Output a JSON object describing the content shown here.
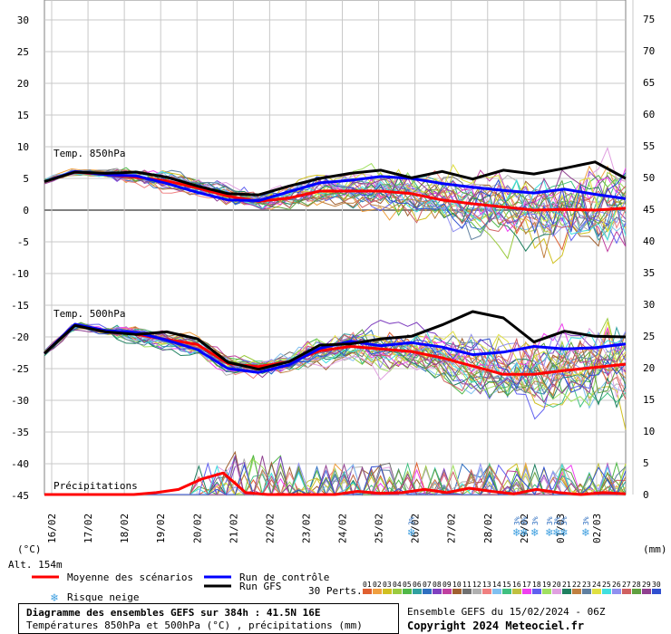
{
  "chart_data": {
    "type": "line",
    "title": "Diagramme des ensembles GEFS sur 384h : 41.5N 16E",
    "subtitle": "Températures 850hPa et 500hPa (°C) , précipitations (mm)",
    "left_axis": {
      "unit_label": "(°C)",
      "ticks": [
        30,
        25,
        20,
        15,
        10,
        5,
        0,
        -5,
        -10,
        -15,
        -20,
        -25,
        -30,
        -35,
        -40,
        -45
      ],
      "range": [
        -45,
        30
      ]
    },
    "right_axis": {
      "unit_label": "(mm)",
      "ticks": [
        75,
        70,
        65,
        60,
        55,
        50,
        45,
        40,
        35,
        30,
        25,
        20,
        15,
        10,
        5,
        0
      ],
      "range": [
        0,
        75
      ]
    },
    "x_ticks": [
      "16/02",
      "17/02",
      "18/02",
      "19/02",
      "20/02",
      "21/02",
      "22/02",
      "23/02",
      "24/02",
      "25/02",
      "26/02",
      "27/02",
      "28/02",
      "29/02",
      "01/03",
      "02/03"
    ],
    "altitude": "Alt. 154m",
    "section_labels": {
      "t850": "Temp. 850hPa",
      "t500": "Temp. 500hPa",
      "precip": "Précipitations"
    },
    "series": [
      {
        "name": "Moyenne des scénarios",
        "group": "t850",
        "color": "#ff0000",
        "values": [
          4.5,
          6.0,
          5.6,
          5.2,
          4.6,
          3.5,
          2.2,
          1.4,
          1.9,
          3.0,
          3.0,
          3.0,
          2.6,
          1.6,
          1.0,
          0.5,
          0.0,
          0.1,
          0.0,
          0.3
        ]
      },
      {
        "name": "Run de contrôle",
        "group": "t850",
        "color": "#0000ff",
        "values": [
          4.5,
          6.1,
          5.6,
          5.4,
          4.2,
          2.8,
          1.6,
          1.5,
          2.9,
          4.3,
          4.7,
          5.3,
          5.0,
          4.2,
          3.6,
          3.1,
          2.7,
          3.3,
          2.5,
          1.8
        ]
      },
      {
        "name": "Run GFS",
        "group": "t850",
        "color": "#000000",
        "values": [
          4.5,
          6.0,
          5.8,
          6.0,
          5.2,
          3.8,
          2.6,
          2.4,
          3.8,
          5.0,
          5.8,
          6.3,
          5.1,
          6.1,
          4.9,
          6.3,
          5.7,
          6.6,
          7.6,
          5.0
        ]
      },
      {
        "name": "Moyenne des scénarios",
        "group": "t500",
        "color": "#ff0000",
        "values": [
          -22.6,
          -18.1,
          -19.0,
          -19.6,
          -20.4,
          -21.2,
          -24.2,
          -24.7,
          -23.9,
          -22.2,
          -21.5,
          -21.9,
          -22.3,
          -23.3,
          -24.6,
          -25.9,
          -25.9,
          -25.3,
          -24.8,
          -24.3
        ]
      },
      {
        "name": "Run de contrôle",
        "group": "t500",
        "color": "#0000ff",
        "values": [
          -22.6,
          -18.0,
          -19.0,
          -19.3,
          -20.5,
          -22.0,
          -25.0,
          -25.6,
          -24.4,
          -21.8,
          -20.7,
          -21.4,
          -20.9,
          -21.6,
          -22.8,
          -22.4,
          -21.5,
          -21.9,
          -21.7,
          -21.1
        ]
      },
      {
        "name": "Run GFS",
        "group": "t500",
        "color": "#000000",
        "values": [
          -22.6,
          -18.2,
          -19.2,
          -19.6,
          -19.2,
          -20.3,
          -24.0,
          -25.1,
          -23.9,
          -21.3,
          -21.1,
          -20.3,
          -19.9,
          -18.1,
          -16.0,
          -17.0,
          -20.8,
          -19.1,
          -19.9,
          -20.0
        ]
      },
      {
        "name": "Moyenne des scénarios",
        "group": "precip",
        "color": "#ff0000",
        "values": [
          0,
          0,
          0,
          0,
          0,
          0.3,
          0.8,
          2.4,
          3.4,
          0.3,
          0,
          0,
          0,
          0,
          0.5,
          0.2,
          0.3,
          0.8,
          0.3,
          1.0,
          0.5,
          0.1,
          0.8,
          0.3,
          0,
          0.3,
          0.1
        ]
      }
    ],
    "member_colors": [
      "#e06030",
      "#f0a040",
      "#d0c020",
      "#9bcb3f",
      "#50b848",
      "#30a0a0",
      "#2f6fc0",
      "#8040c0",
      "#c040a0",
      "#a06030",
      "#707070",
      "#b0b0b0",
      "#f08080",
      "#80c0f0",
      "#40c080",
      "#c0c040",
      "#f040f0",
      "#6060f0",
      "#a0e060",
      "#e0a0e0",
      "#208060",
      "#c08040",
      "#6080a0",
      "#e0e040",
      "#40e0e0",
      "#9090f0",
      "#d06060",
      "#60a040",
      "#904090",
      "#3050d0"
    ],
    "legend": {
      "mean": "Moyenne des scénarios",
      "control": "Run de contrôle",
      "gfs": "Run GFS",
      "snow": "Risque neige",
      "perts": "30 Perts.",
      "pert_numbers": [
        "01",
        "02",
        "03",
        "04",
        "05",
        "06",
        "07",
        "08",
        "09",
        "10",
        "11",
        "12",
        "13",
        "14",
        "15",
        "16",
        "17",
        "18",
        "19",
        "20",
        "21",
        "22",
        "23",
        "24",
        "25",
        "26",
        "27",
        "28",
        "29",
        "30"
      ],
      "pert_colors": [
        "#e06030",
        "#f0a040",
        "#d0c020",
        "#9bcb3f",
        "#50b848",
        "#30a0a0",
        "#2f6fc0",
        "#8040c0",
        "#c040a0",
        "#a06030",
        "#707070",
        "#b0b0b0",
        "#f08080",
        "#80c0f0",
        "#40c080",
        "#c0c040",
        "#f040f0",
        "#6060f0",
        "#a0e060",
        "#e0a0e0",
        "#208060",
        "#c08040",
        "#6080a0",
        "#e0e040",
        "#40e0e0",
        "#9090f0",
        "#d06060",
        "#60a040",
        "#904090",
        "#3050d0"
      ]
    },
    "snow_risk": {
      "label": "3%",
      "days": [
        "26/02",
        "29/02",
        "29/02",
        "29/02",
        "01/03",
        "01/03",
        "01/03",
        "02/03"
      ],
      "day_offsets": [
        10.1,
        13.0,
        13.2,
        13.5,
        13.9,
        14.1,
        14.3,
        14.9
      ]
    },
    "grid": true
  },
  "footer": {
    "title": "Diagramme des ensembles GEFS sur 384h : 41.5N 16E",
    "subtitle": "Températures 850hPa et 500hPa (°C) , précipitations (mm)",
    "ensemble": "Ensemble GEFS du 15/02/2024 - 06Z",
    "copyright": "Copyright 2024 Meteociel.fr"
  }
}
